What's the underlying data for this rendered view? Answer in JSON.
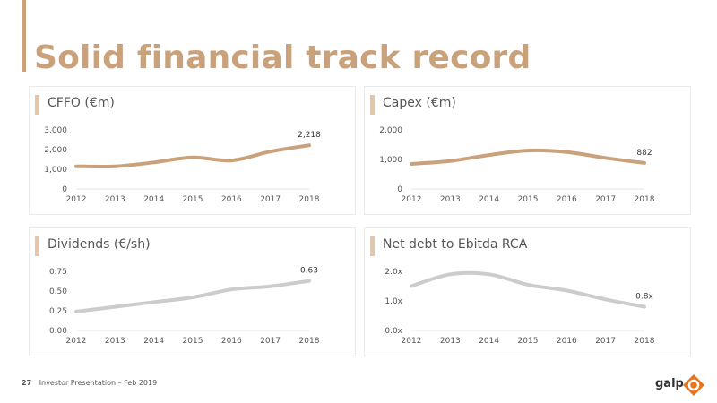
{
  "title": "Solid financial track record",
  "footer": {
    "page_number": "27",
    "text": "Investor Presentation – Feb 2019"
  },
  "brand": {
    "logo_text": "galp",
    "accent_color": "#c9a27c",
    "series_gold": "#c9a27c",
    "series_grey": "#cccccc"
  },
  "chart_data": [
    {
      "type": "line",
      "title": "CFFO (€m)",
      "categories": [
        "2012",
        "2013",
        "2014",
        "2015",
        "2016",
        "2017",
        "2018"
      ],
      "y_ticks": [
        "0",
        "1,000",
        "2,000",
        "3,000"
      ],
      "ylim": [
        0,
        3000
      ],
      "values": [
        1150,
        1150,
        1350,
        1600,
        1450,
        1900,
        2218
      ],
      "end_label": "2,218",
      "color": "#c9a27c"
    },
    {
      "type": "line",
      "title": "Capex (€m)",
      "categories": [
        "2012",
        "2013",
        "2014",
        "2015",
        "2016",
        "2017",
        "2018"
      ],
      "y_ticks": [
        "0",
        "1,000",
        "2,000"
      ],
      "ylim": [
        0,
        2000
      ],
      "values": [
        850,
        950,
        1150,
        1300,
        1250,
        1050,
        882
      ],
      "end_label": "882",
      "color": "#c9a27c"
    },
    {
      "type": "line",
      "title": "Dividends (€/sh)",
      "categories": [
        "2012",
        "2013",
        "2014",
        "2015",
        "2016",
        "2017",
        "2018"
      ],
      "y_ticks": [
        "0.00",
        "0.25",
        "0.50",
        "0.75"
      ],
      "ylim": [
        0,
        0.75
      ],
      "values": [
        0.24,
        0.3,
        0.36,
        0.42,
        0.52,
        0.56,
        0.63
      ],
      "end_label": "0.63",
      "color": "#cccccc"
    },
    {
      "type": "line",
      "title": "Net debt to Ebitda RCA",
      "categories": [
        "2012",
        "2013",
        "2014",
        "2015",
        "2016",
        "2017",
        "2018"
      ],
      "y_ticks": [
        "0.0x",
        "1.0x",
        "2.0x"
      ],
      "ylim": [
        0,
        2
      ],
      "values": [
        1.5,
        1.9,
        1.9,
        1.55,
        1.35,
        1.05,
        0.8
      ],
      "end_label": "0.8x",
      "color": "#cccccc"
    }
  ]
}
